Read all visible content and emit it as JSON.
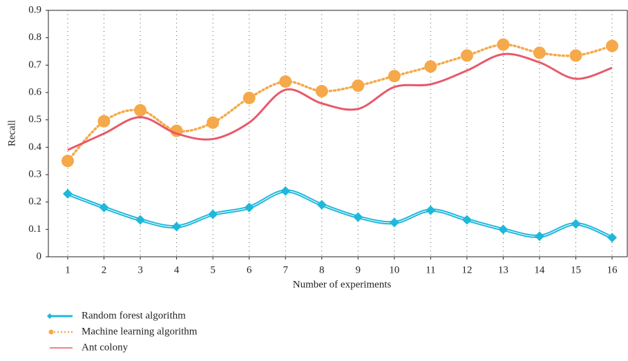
{
  "chart_data": {
    "type": "line",
    "xlabel": "Number of experiments",
    "ylabel": "Recall",
    "categories": [
      "1",
      "2",
      "3",
      "4",
      "5",
      "6",
      "7",
      "8",
      "9",
      "10",
      "11",
      "12",
      "13",
      "14",
      "15",
      "16"
    ],
    "series": [
      {
        "name": "Random forest algorithm",
        "color": "#1fb8dc",
        "marker": "diamond",
        "values": [
          0.23,
          0.18,
          0.135,
          0.11,
          0.155,
          0.18,
          0.24,
          0.19,
          0.145,
          0.125,
          0.17,
          0.135,
          0.1,
          0.075,
          0.12,
          0.07
        ]
      },
      {
        "name": "Machine learning algorithm",
        "color": "#f5a94a",
        "marker": "circle",
        "values": [
          0.35,
          0.495,
          0.535,
          0.46,
          0.49,
          0.58,
          0.64,
          0.605,
          0.625,
          0.66,
          0.695,
          0.735,
          0.775,
          0.745,
          0.735,
          0.77
        ]
      },
      {
        "name": "Ant colony",
        "color": "#e8596a",
        "marker": "none",
        "values": [
          0.39,
          0.45,
          0.51,
          0.45,
          0.43,
          0.49,
          0.61,
          0.56,
          0.54,
          0.62,
          0.63,
          0.68,
          0.74,
          0.71,
          0.65,
          0.69
        ]
      }
    ],
    "ylim": [
      0,
      0.9
    ],
    "yticks": [
      0,
      0.1,
      0.2,
      0.3,
      0.4,
      0.5,
      0.6,
      0.7,
      0.8,
      0.9
    ],
    "grid": true,
    "legend": "bottom-left"
  }
}
